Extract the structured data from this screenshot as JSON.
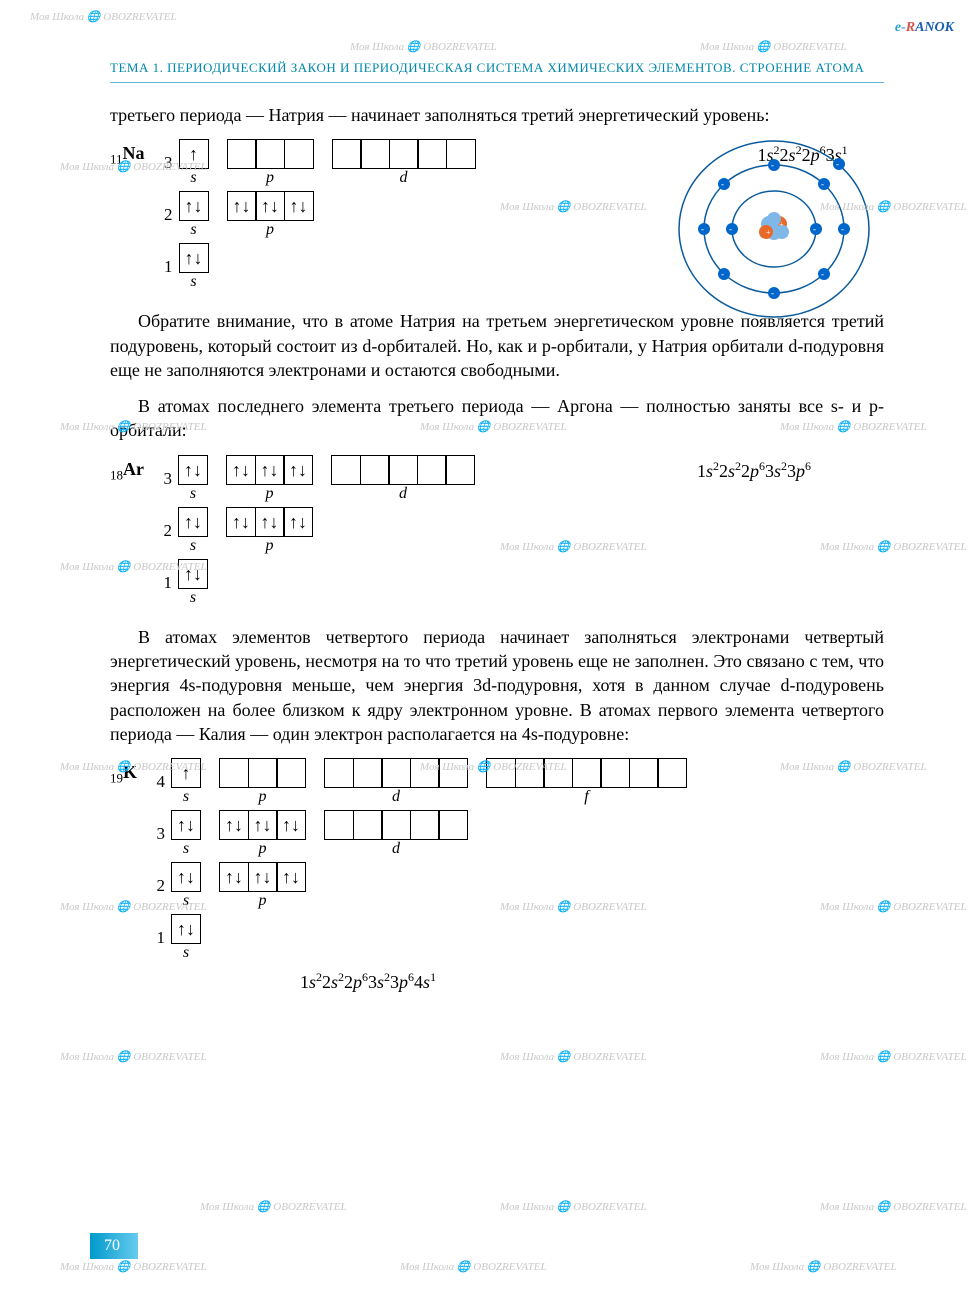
{
  "header": "ТЕМА 1. ПЕРИОДИЧЕСКИЙ ЗАКОН И ПЕРИОДИЧЕСКАЯ СИСТЕМА ХИМИЧЕСКИХ ЭЛЕМЕНТОВ. СТРОЕНИЕ АТОМА",
  "page_number": "70",
  "logo": "e-RANOK",
  "watermark_text": "Моя Школа 🌐 OBOZREVATEL",
  "paragraphs": {
    "p1": "третьего периода — Натрия — начинает заполняться третий энергетический уровень:",
    "p2": "Обратите внимание, что в атоме Натрия на третьем энергетическом уровне появляется третий подуровень, который состоит из d-орбиталей. Но, как и p-орбитали, у Натрия орбитали d-подуровня еще не заполняются электронами и остаются свободными.",
    "p3": "В атомах последнего элемента третьего периода — Аргона — полностью заняты все s- и p-орбитали:",
    "p4": "В атомах элементов четвертого периода начинает заполняться электронами четвертый энергетический уровень, несмотря на то что третий уровень еще не заполнен. Это связано с тем, что энергия 4s-подуровня меньше, чем энергия 3d-подуровня, хотя в данном случае d-подуровень расположен на более близком к ядру электронном уровне. В атомах первого элемента четвертого периода — Калия — один электрон располагается на 4s-подуровне:"
  },
  "elements": {
    "na": {
      "number": "11",
      "symbol": "Na",
      "config_html": "1s²2s²2p⁶3s¹",
      "levels": [
        {
          "n": "3",
          "groups": [
            {
              "label": "s",
              "cells": [
                "↑"
              ]
            },
            {
              "label": "p",
              "cells": [
                "",
                "",
                ""
              ]
            },
            {
              "label": "d",
              "cells": [
                "",
                "",
                "",
                "",
                ""
              ]
            }
          ]
        },
        {
          "n": "2",
          "groups": [
            {
              "label": "s",
              "cells": [
                "↑↓"
              ]
            },
            {
              "label": "p",
              "cells": [
                "↑↓",
                "↑↓",
                "↑↓"
              ]
            }
          ]
        },
        {
          "n": "1",
          "groups": [
            {
              "label": "s",
              "cells": [
                "↑↓"
              ]
            }
          ]
        }
      ]
    },
    "ar": {
      "number": "18",
      "symbol": "Ar",
      "config_html": "1s²2s²2p⁶3s²3p⁶",
      "levels": [
        {
          "n": "3",
          "groups": [
            {
              "label": "s",
              "cells": [
                "↑↓"
              ]
            },
            {
              "label": "p",
              "cells": [
                "↑↓",
                "↑↓",
                "↑↓"
              ]
            },
            {
              "label": "d",
              "cells": [
                "",
                "",
                "",
                "",
                ""
              ]
            }
          ]
        },
        {
          "n": "2",
          "groups": [
            {
              "label": "s",
              "cells": [
                "↑↓"
              ]
            },
            {
              "label": "p",
              "cells": [
                "↑↓",
                "↑↓",
                "↑↓"
              ]
            }
          ]
        },
        {
          "n": "1",
          "groups": [
            {
              "label": "s",
              "cells": [
                "↑↓"
              ]
            }
          ]
        }
      ]
    },
    "k": {
      "number": "19",
      "symbol": "K",
      "config_html": "1s²2s²2p⁶3s²3p⁶4s¹",
      "levels": [
        {
          "n": "4",
          "groups": [
            {
              "label": "s",
              "cells": [
                "↑"
              ]
            },
            {
              "label": "p",
              "cells": [
                "",
                "",
                ""
              ]
            },
            {
              "label": "d",
              "cells": [
                "",
                "",
                "",
                "",
                ""
              ]
            },
            {
              "label": "f",
              "cells": [
                "",
                "",
                "",
                "",
                "",
                "",
                ""
              ]
            }
          ]
        },
        {
          "n": "3",
          "groups": [
            {
              "label": "s",
              "cells": [
                "↑↓"
              ]
            },
            {
              "label": "p",
              "cells": [
                "↑↓",
                "↑↓",
                "↑↓"
              ]
            },
            {
              "label": "d",
              "cells": [
                "",
                "",
                "",
                "",
                ""
              ]
            }
          ]
        },
        {
          "n": "2",
          "groups": [
            {
              "label": "s",
              "cells": [
                "↑↓"
              ]
            },
            {
              "label": "p",
              "cells": [
                "↑↓",
                "↑↓",
                "↑↓"
              ]
            }
          ]
        },
        {
          "n": "1",
          "groups": [
            {
              "label": "s",
              "cells": [
                "↑↓"
              ]
            }
          ]
        }
      ]
    }
  },
  "atom": {
    "orbit_color": "#0a5a9c",
    "electron_color": "#0066cc",
    "nucleus_proton": "#e86a2a",
    "nucleus_neutron": "#7fb8e8",
    "electrons_orbit1": 2,
    "electrons_orbit2": 8,
    "electrons_orbit3": 1
  },
  "colors": {
    "header_text": "#0088aa",
    "header_border": "#5cb8d8",
    "page_bg": "#ffffff",
    "page_num_bg_start": "#0099cc",
    "page_num_bg_end": "#66ccee"
  }
}
